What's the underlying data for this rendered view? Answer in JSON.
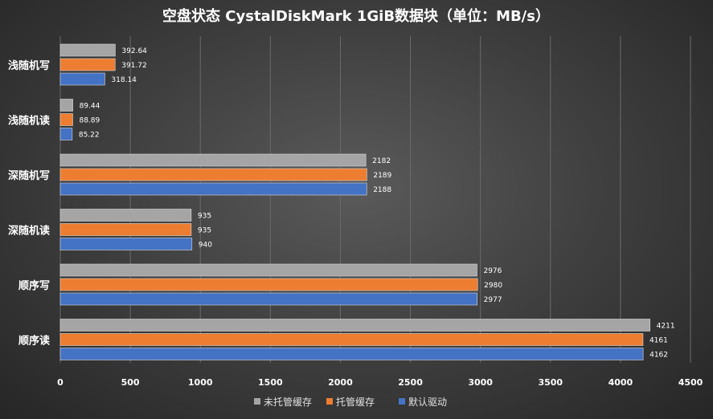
{
  "chart_data": {
    "type": "bar",
    "orientation": "horizontal",
    "title": "空盘状态   CystalDiskMark 1GiB数据块（单位：MB/s）",
    "categories": [
      "浅随机写",
      "浅随机读",
      "深随机写",
      "深随机读",
      "顺序写",
      "顺序读"
    ],
    "series": [
      {
        "name": "未托管缓存",
        "color": "#a5a5a5",
        "values": [
          392.64,
          89.44,
          2182,
          935,
          2976,
          4211
        ],
        "labels": [
          "392.64",
          "89.44",
          "2182",
          "935",
          "2976",
          "4211"
        ]
      },
      {
        "name": "托管缓存",
        "color": "#ed7d31",
        "values": [
          391.72,
          88.89,
          2189,
          935,
          2980,
          4161
        ],
        "labels": [
          "391.72",
          "88.89",
          "2189",
          "935",
          "2980",
          "4161"
        ]
      },
      {
        "name": "默认驱动",
        "color": "#4472c4",
        "values": [
          318.14,
          85.22,
          2188,
          940,
          2977,
          4162
        ],
        "labels": [
          "318.14",
          "85.22",
          "2188",
          "940",
          "2977",
          "4162"
        ]
      }
    ],
    "xlim": [
      0,
      4500
    ],
    "xticks": [
      0,
      500,
      1000,
      1500,
      2000,
      2500,
      3000,
      3500,
      4000,
      4500
    ],
    "grid": true,
    "legend": "bottom"
  }
}
